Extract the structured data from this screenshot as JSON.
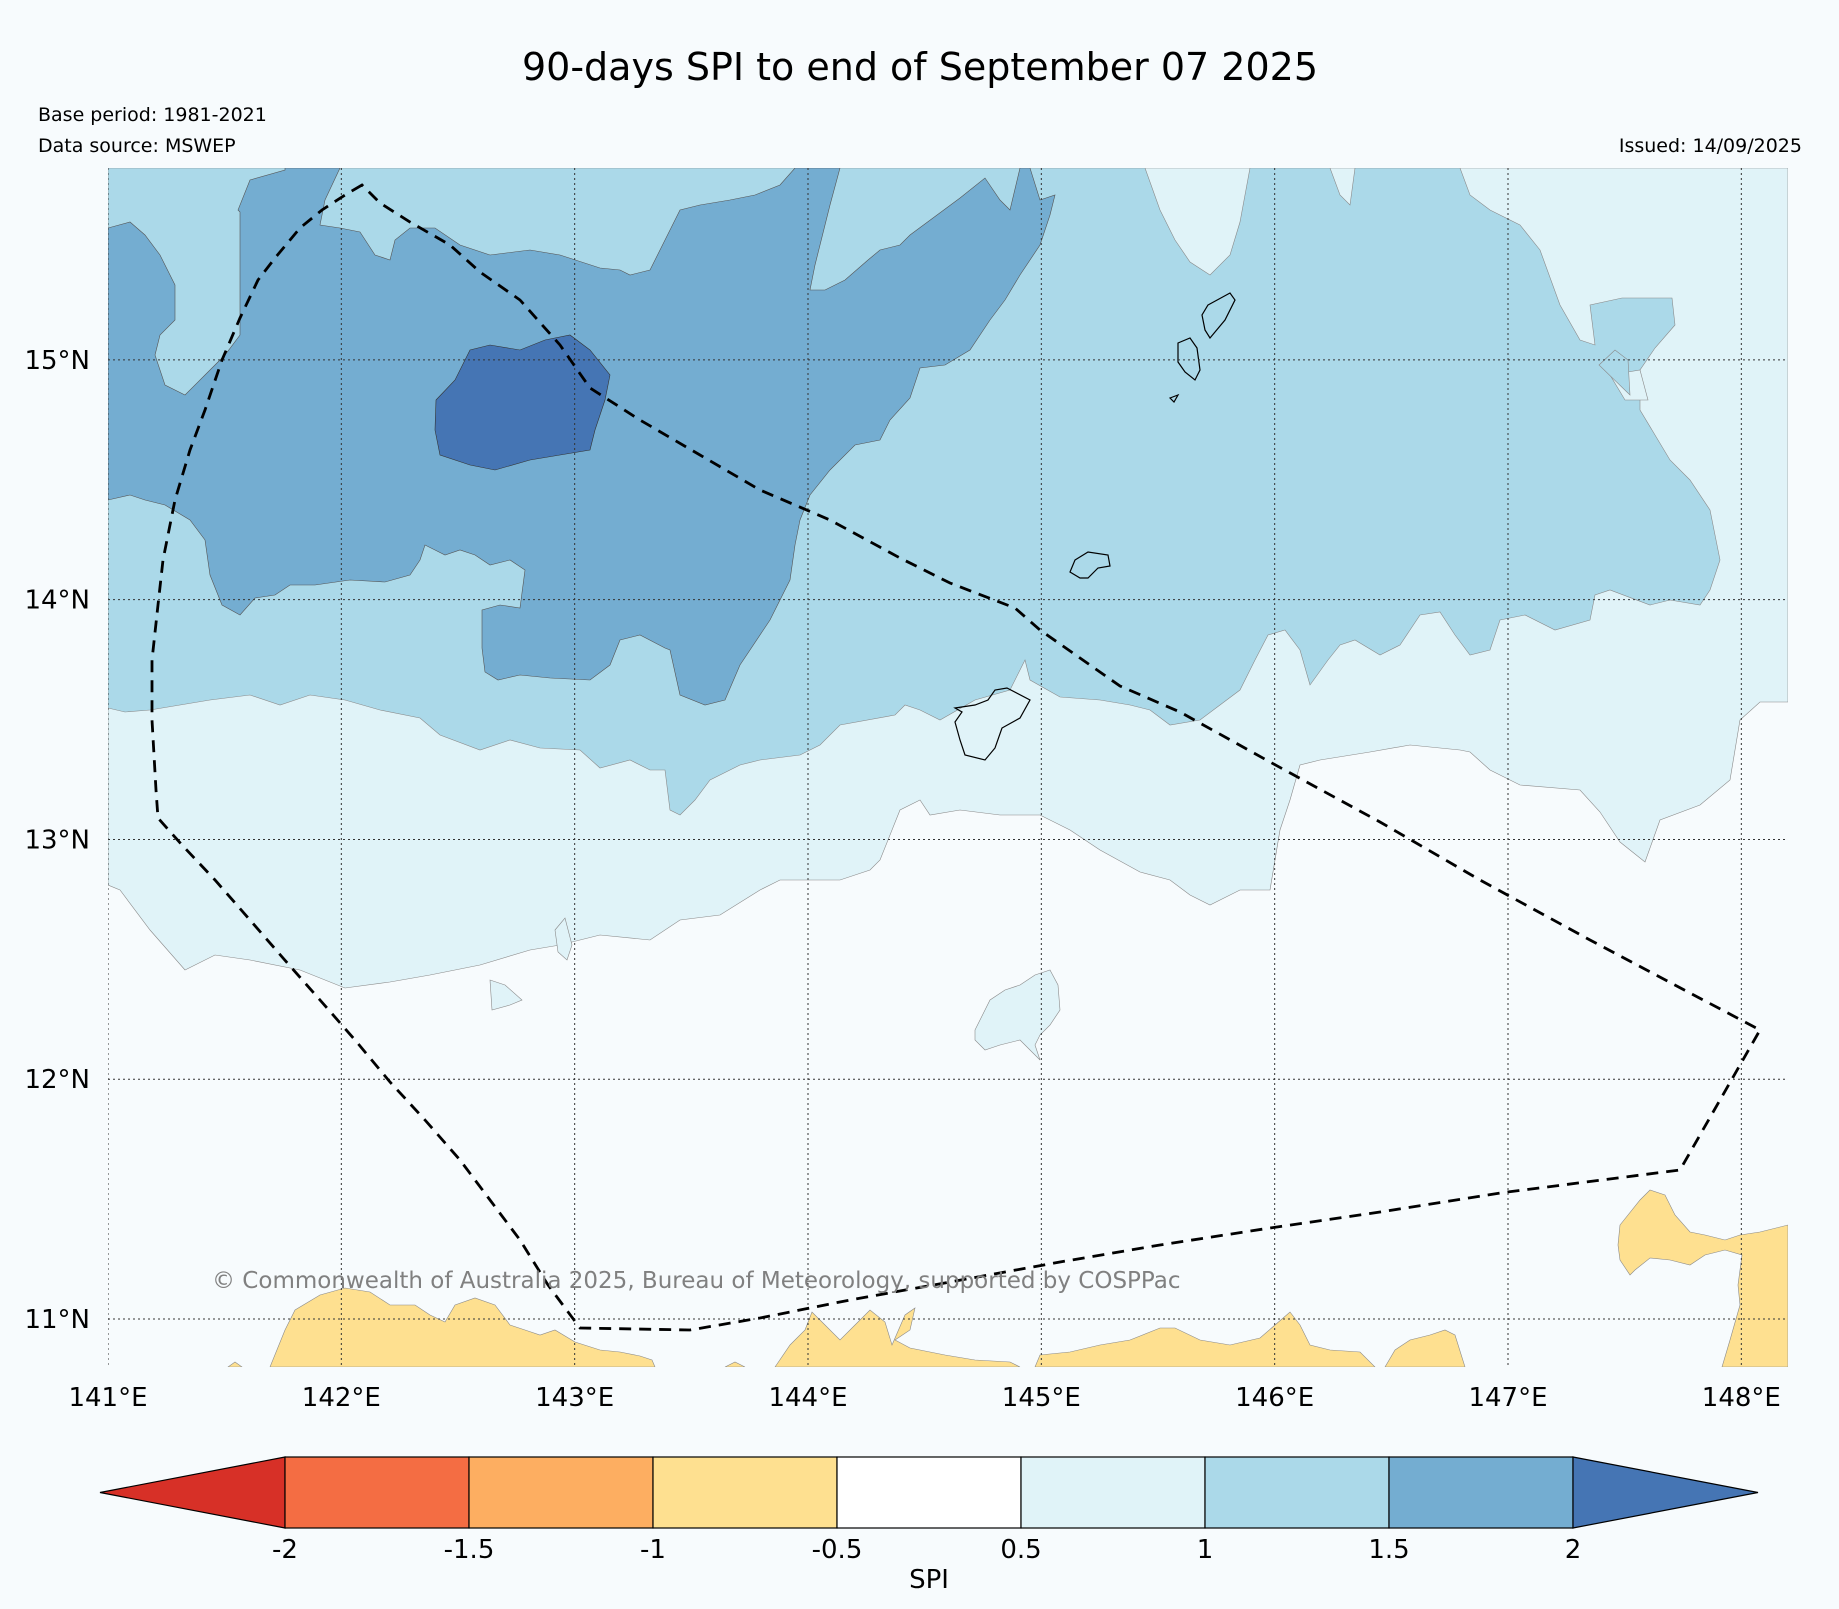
{
  "header": {
    "title": "90-days SPI to end of September 07 2025",
    "base_period": "Base period: 1981-2021",
    "data_source": "Data source: MSWEP",
    "issued": "Issued: 14/09/2025"
  },
  "map": {
    "projection": "lat-lon",
    "extent": {
      "lon_min": 141.0,
      "lon_max": 148.2,
      "lat_min": 10.8,
      "lat_max": 15.8
    },
    "lon_ticks": [
      {
        "value": 141,
        "label": "141°E"
      },
      {
        "value": 142,
        "label": "142°E"
      },
      {
        "value": 143,
        "label": "143°E"
      },
      {
        "value": 144,
        "label": "144°E"
      },
      {
        "value": 145,
        "label": "145°E"
      },
      {
        "value": 146,
        "label": "146°E"
      },
      {
        "value": 147,
        "label": "147°E"
      },
      {
        "value": 148,
        "label": "148°E"
      }
    ],
    "lat_ticks": [
      {
        "value": 15,
        "label": "15°N"
      },
      {
        "value": 14,
        "label": "14°N"
      },
      {
        "value": 13,
        "label": "13°N"
      },
      {
        "value": 12,
        "label": "12°N"
      },
      {
        "value": 11,
        "label": "11°N"
      }
    ],
    "gridlines": "dotted",
    "boundary_style": "dashed",
    "credit": "© Commonwealth of Australia 2025, Bureau of Meteorology, supported by COSPPac"
  },
  "legend": {
    "label": "SPI",
    "tick_labels": [
      "-2",
      "-1.5",
      "-1",
      "-0.5",
      "0.5",
      "1",
      "1.5",
      "2"
    ],
    "bins": [
      {
        "range": "< -2",
        "color": "#d73027"
      },
      {
        "range": "-2 to -1.5",
        "color": "#f46d43"
      },
      {
        "range": "-1.5 to -1",
        "color": "#fdae61"
      },
      {
        "range": "-1 to -0.5",
        "color": "#fee090"
      },
      {
        "range": "-0.5 to 0.5",
        "color": "#ffffff"
      },
      {
        "range": "0.5 to 1",
        "color": "#e0f3f8"
      },
      {
        "range": "1 to 1.5",
        "color": "#abd9e9"
      },
      {
        "range": "1.5 to 2",
        "color": "#74add1"
      },
      {
        "range": "> 2",
        "color": "#4575b4"
      }
    ]
  },
  "chart_data": {
    "type": "filled-contour-map",
    "variable": "SPI",
    "period": "90 days",
    "end_date": "2025-09-07",
    "levels": [
      -2,
      -1.5,
      -1,
      -0.5,
      0.5,
      1,
      1.5,
      2
    ],
    "dominant_classes": [
      {
        "area": "north-west",
        "spi_range": "1.5 to 2",
        "peak": "> 2 near 142.6°E 14.8°N"
      },
      {
        "area": "north-east",
        "spi_range": "1 to 1.5"
      },
      {
        "area": "central band near 13°N",
        "spi_range": "0.5 to 1"
      },
      {
        "area": "south",
        "spi_range": "-0.5 to 0.5"
      },
      {
        "area": "southern edge near 11°N",
        "spi_range": "-1 to -0.5"
      }
    ]
  }
}
